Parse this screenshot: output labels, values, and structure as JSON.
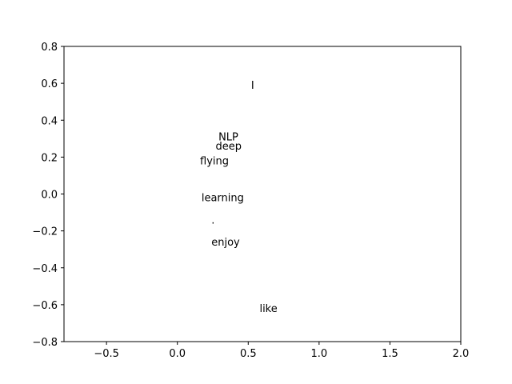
{
  "chart_data": {
    "type": "scatter",
    "title": "",
    "xlabel": "",
    "ylabel": "",
    "xlim": [
      -0.8,
      2.0
    ],
    "ylim": [
      -0.8,
      0.8
    ],
    "grid": false,
    "xticks": [
      -0.5,
      0.0,
      0.5,
      1.0,
      1.5,
      2.0
    ],
    "xtick_labels": [
      "−0.5",
      "0.0",
      "0.5",
      "1.0",
      "1.5",
      "2.0"
    ],
    "yticks": [
      -0.8,
      -0.6,
      -0.4,
      -0.2,
      0.0,
      0.2,
      0.4,
      0.6,
      0.8
    ],
    "ytick_labels": [
      "−0.8",
      "−0.6",
      "−0.4",
      "−0.2",
      "0.0",
      "0.2",
      "0.4",
      "0.6",
      "0.8"
    ],
    "points": [
      {
        "label": "I",
        "x": 0.52,
        "y": 0.57
      },
      {
        "label": "NLP",
        "x": 0.29,
        "y": 0.29
      },
      {
        "label": "deep",
        "x": 0.27,
        "y": 0.24
      },
      {
        "label": "flying",
        "x": 0.16,
        "y": 0.16
      },
      {
        "label": "learning",
        "x": 0.17,
        "y": -0.04
      },
      {
        "label": ".",
        "x": 0.24,
        "y": -0.16
      },
      {
        "label": "enjoy",
        "x": 0.24,
        "y": -0.28
      },
      {
        "label": "like",
        "x": 0.58,
        "y": -0.64
      }
    ]
  }
}
